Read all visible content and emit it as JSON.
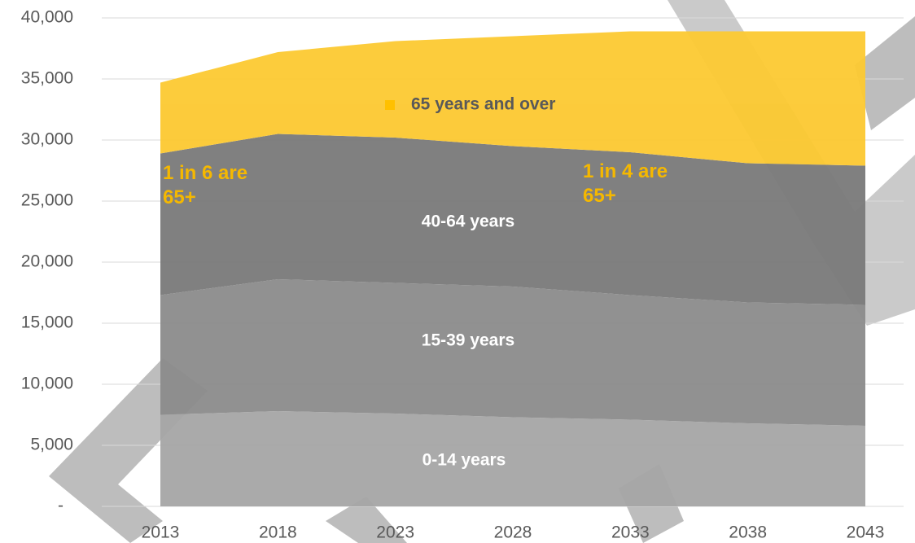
{
  "chart_data": {
    "type": "stacked-area",
    "categories": [
      "2013",
      "2018",
      "2023",
      "2028",
      "2033",
      "2038",
      "2043"
    ],
    "series": [
      {
        "name": "0-14 years",
        "color": "#a6a6a6",
        "values": [
          7500,
          7800,
          7600,
          7300,
          7100,
          6800,
          6600
        ]
      },
      {
        "name": "15-39 years",
        "color": "#8c8c8c",
        "values": [
          9800,
          10800,
          10700,
          10700,
          10200,
          9900,
          9900
        ]
      },
      {
        "name": "40-64 years",
        "color": "#7a7a7a",
        "values": [
          11600,
          11900,
          11900,
          11500,
          11700,
          11400,
          11400
        ]
      },
      {
        "name": "65 years and over",
        "color": "#fcc931",
        "values": [
          5800,
          6700,
          7900,
          9000,
          9900,
          10800,
          11000
        ]
      }
    ],
    "ylim": [
      0,
      40000
    ],
    "yticks": [
      {
        "value": 0,
        "label": "-"
      },
      {
        "value": 5000,
        "label": "5,000"
      },
      {
        "value": 10000,
        "label": "10,000"
      },
      {
        "value": 15000,
        "label": "15,000"
      },
      {
        "value": 20000,
        "label": "20,000"
      },
      {
        "value": 25000,
        "label": "25,000"
      },
      {
        "value": 30000,
        "label": "30,000"
      },
      {
        "value": 35000,
        "label": "35,000"
      },
      {
        "value": 40000,
        "label": "40,000"
      }
    ],
    "grid": true,
    "annotations": [
      "1 in 6 are 65+",
      "1 in 4 are 65+"
    ]
  }
}
